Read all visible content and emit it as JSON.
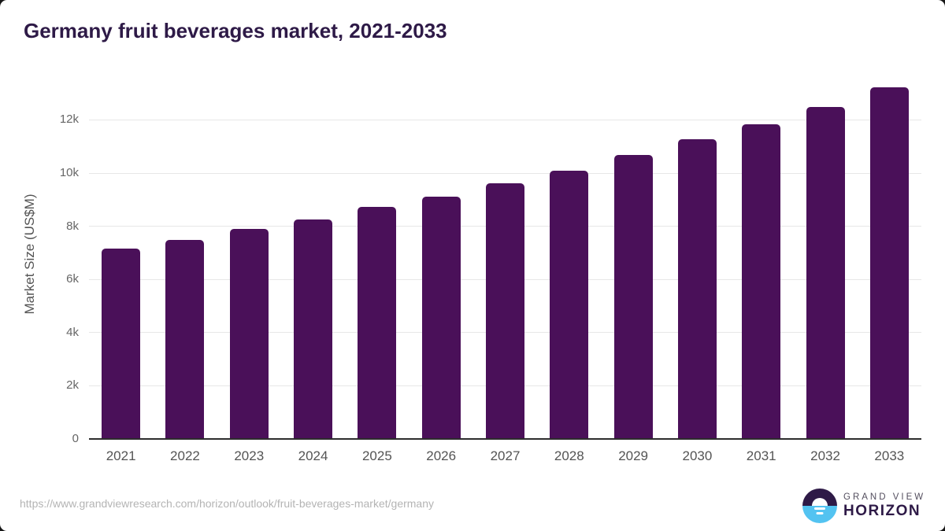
{
  "header": {
    "title": "Germany fruit beverages market, 2021-2033"
  },
  "chart_data": {
    "type": "bar",
    "title": "Germany fruit beverages market, 2021-2033",
    "categories": [
      "2021",
      "2022",
      "2023",
      "2024",
      "2025",
      "2026",
      "2027",
      "2028",
      "2029",
      "2030",
      "2031",
      "2032",
      "2033"
    ],
    "values": [
      7150,
      7500,
      7900,
      8260,
      8720,
      9110,
      9620,
      10100,
      10670,
      11260,
      11840,
      12480,
      13230
    ],
    "xlabel": "",
    "ylabel": "Market Size (US$M)",
    "ylim": [
      0,
      13800
    ],
    "yticks": [
      0,
      2000,
      4000,
      6000,
      8000,
      10000,
      12000
    ],
    "ytick_labels": [
      "0",
      "2k",
      "4k",
      "6k",
      "8k",
      "10k",
      "12k"
    ],
    "grid": true,
    "legend": false,
    "bar_color": "#4a1059"
  },
  "footer": {
    "source_url": "https://www.grandviewresearch.com/horizon/outlook/fruit-beverages-market/germany",
    "logo": {
      "top_text": "GRAND VIEW",
      "bottom_text": "HORIZON"
    }
  },
  "colors": {
    "bar": "#4a1059",
    "title_text": "#2e1a47",
    "axis_line": "#2d2d2d",
    "gridline": "#e7e7e7",
    "logo_blue": "#53c3f1",
    "logo_dark": "#2e1a47"
  }
}
